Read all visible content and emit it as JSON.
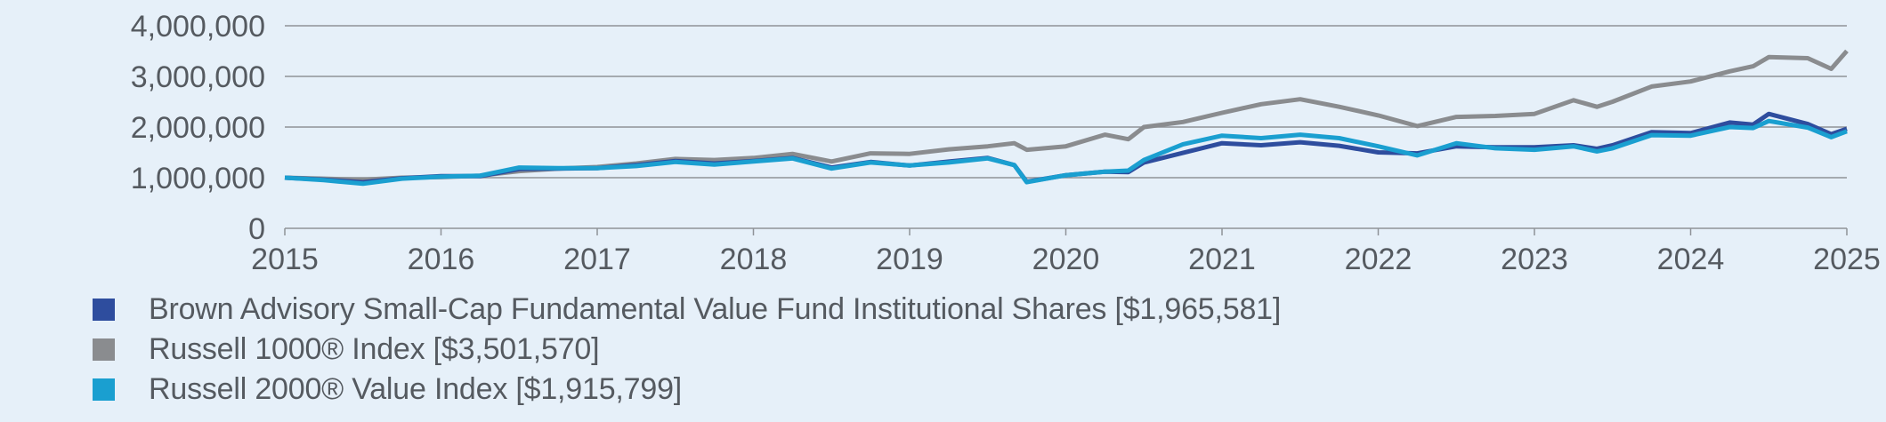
{
  "chart_data": {
    "type": "line",
    "title": "",
    "xlabel": "",
    "ylabel": "",
    "xlim": [
      2015,
      2025
    ],
    "ylim": [
      0,
      4000000
    ],
    "grid": true,
    "legend_position": "bottom-left",
    "x_ticks": [
      "2015",
      "2016",
      "2017",
      "2018",
      "2019",
      "2020",
      "2021",
      "2022",
      "2023",
      "2024",
      "2025"
    ],
    "y_ticks": [
      "0",
      "1,000,000",
      "2,000,000",
      "3,000,000",
      "4,000,000"
    ],
    "y_tick_values": [
      0,
      1000000,
      2000000,
      3000000,
      4000000
    ],
    "x": [
      2015.0,
      2015.25,
      2015.5,
      2015.75,
      2016.0,
      2016.25,
      2016.5,
      2016.75,
      2017.0,
      2017.25,
      2017.5,
      2017.75,
      2018.0,
      2018.25,
      2018.5,
      2018.75,
      2019.0,
      2019.25,
      2019.5,
      2019.67,
      2019.75,
      2020.0,
      2020.25,
      2020.4,
      2020.5,
      2020.75,
      2021.0,
      2021.25,
      2021.5,
      2021.75,
      2022.0,
      2022.25,
      2022.5,
      2022.75,
      2023.0,
      2023.25,
      2023.4,
      2023.5,
      2023.75,
      2024.0,
      2024.25,
      2024.4,
      2024.5,
      2024.75,
      2024.9,
      2025.0
    ],
    "series": [
      {
        "name": "Brown Advisory Small-Cap Fundamental Value Fund Institutional Shares [$1,965,581]",
        "color": "#2e4d9e",
        "values": [
          1000000,
          960000,
          910000,
          990000,
          1030000,
          1030000,
          1170000,
          1180000,
          1190000,
          1250000,
          1330000,
          1280000,
          1330000,
          1390000,
          1200000,
          1310000,
          1240000,
          1320000,
          1390000,
          1250000,
          920000,
          1050000,
          1120000,
          1110000,
          1300000,
          1490000,
          1680000,
          1640000,
          1700000,
          1630000,
          1500000,
          1480000,
          1620000,
          1600000,
          1600000,
          1640000,
          1570000,
          1640000,
          1900000,
          1880000,
          2090000,
          2050000,
          2260000,
          2060000,
          1860000,
          1965581
        ]
      },
      {
        "name": "Russell 1000® Index [$3,501,570]",
        "color": "#8a8c8f",
        "values": [
          1000000,
          980000,
          960000,
          1000000,
          1010000,
          1040000,
          1130000,
          1180000,
          1210000,
          1280000,
          1370000,
          1350000,
          1390000,
          1470000,
          1320000,
          1480000,
          1470000,
          1560000,
          1620000,
          1680000,
          1550000,
          1620000,
          1850000,
          1760000,
          2000000,
          2100000,
          2280000,
          2450000,
          2550000,
          2400000,
          2230000,
          2020000,
          2200000,
          2220000,
          2260000,
          2530000,
          2400000,
          2500000,
          2800000,
          2900000,
          3100000,
          3200000,
          3380000,
          3360000,
          3150000,
          3501570
        ]
      },
      {
        "name": "Russell 2000® Value Index [$1,915,799]",
        "color": "#1a9fd0",
        "values": [
          1000000,
          950000,
          880000,
          980000,
          1020000,
          1040000,
          1200000,
          1190000,
          1190000,
          1230000,
          1310000,
          1260000,
          1320000,
          1380000,
          1180000,
          1300000,
          1240000,
          1300000,
          1380000,
          1250000,
          910000,
          1050000,
          1120000,
          1140000,
          1350000,
          1660000,
          1830000,
          1780000,
          1850000,
          1780000,
          1620000,
          1440000,
          1680000,
          1580000,
          1550000,
          1620000,
          1520000,
          1580000,
          1840000,
          1830000,
          2000000,
          1980000,
          2120000,
          1990000,
          1800000,
          1915799
        ]
      }
    ]
  },
  "legend": {
    "items": [
      {
        "label": "Brown Advisory Small-Cap Fundamental Value Fund Institutional Shares [$1,965,581]",
        "color": "#2e4d9e"
      },
      {
        "label": "Russell 1000® Index [$3,501,570]",
        "color": "#8a8c8f"
      },
      {
        "label": "Russell 2000® Value Index [$1,915,799]",
        "color": "#1a9fd0"
      }
    ]
  }
}
